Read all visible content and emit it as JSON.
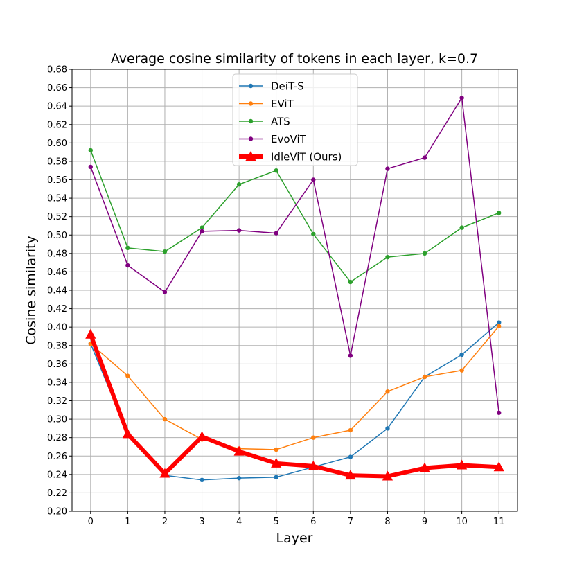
{
  "chart_data": {
    "type": "line",
    "title": "Average cosine similarity of tokens in each layer, k=0.7",
    "xlabel": "Layer",
    "ylabel": "Cosine similarity",
    "x": [
      0,
      1,
      2,
      3,
      4,
      5,
      6,
      7,
      8,
      9,
      10,
      11
    ],
    "xlim": [
      -0.5,
      11.5
    ],
    "ylim": [
      0.2,
      0.68
    ],
    "yticks": [
      0.2,
      0.22,
      0.24,
      0.26,
      0.28,
      0.3,
      0.32,
      0.34,
      0.36,
      0.38,
      0.4,
      0.42,
      0.44,
      0.46,
      0.48,
      0.5,
      0.52,
      0.54,
      0.56,
      0.58,
      0.6,
      0.62,
      0.64,
      0.66,
      0.68
    ],
    "grid": true,
    "legend_position": "top-center",
    "series": [
      {
        "name": "DeiT-S",
        "color": "#1f77b4",
        "marker": "circle",
        "values": [
          0.382,
          0.284,
          0.239,
          0.234,
          0.236,
          0.237,
          0.248,
          0.259,
          0.29,
          0.346,
          0.37,
          0.405
        ]
      },
      {
        "name": "EViT",
        "color": "#ff7f0e",
        "marker": "circle",
        "values": [
          0.382,
          0.347,
          0.3,
          0.278,
          0.268,
          0.267,
          0.28,
          0.288,
          0.33,
          0.346,
          0.353,
          0.401
        ]
      },
      {
        "name": "ATS",
        "color": "#2ca02c",
        "marker": "circle",
        "values": [
          0.592,
          0.486,
          0.482,
          0.508,
          0.555,
          0.57,
          0.501,
          0.449,
          0.476,
          0.48,
          0.508,
          0.524
        ]
      },
      {
        "name": "EvoViT",
        "color": "#800080",
        "marker": "circle",
        "values": [
          0.574,
          0.467,
          0.438,
          0.504,
          0.505,
          0.502,
          0.56,
          0.369,
          0.572,
          0.584,
          0.649,
          0.307
        ]
      },
      {
        "name": "IdleViT (Ours)",
        "color": "#ff0000",
        "marker": "triangle",
        "values": [
          0.392,
          0.284,
          0.241,
          0.281,
          0.265,
          0.252,
          0.249,
          0.239,
          0.238,
          0.247,
          0.25,
          0.248
        ]
      }
    ]
  }
}
